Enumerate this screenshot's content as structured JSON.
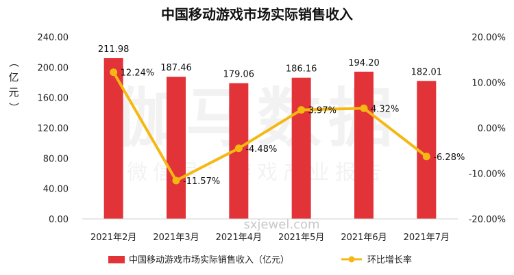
{
  "chart_data": {
    "type": "bar+line",
    "title": "中国移动游戏市场实际销售收入",
    "ylabel": "（亿元）",
    "categories": [
      "2021年2月",
      "2021年3月",
      "2021年4月",
      "2021年5月",
      "2021年6月",
      "2021年7月"
    ],
    "series": [
      {
        "name": "中国移动游戏市场实际销售收入（亿元）",
        "type": "bar",
        "axis": "left",
        "color": "#e23339",
        "values": [
          211.98,
          187.46,
          179.06,
          186.16,
          194.2,
          182.01
        ],
        "labels": [
          "211.98",
          "187.46",
          "179.06",
          "186.16",
          "194.20",
          "182.01"
        ]
      },
      {
        "name": "环比增长率",
        "type": "line",
        "axis": "right",
        "color": "#f5b813",
        "values": [
          12.24,
          -11.57,
          -4.48,
          3.97,
          4.32,
          -6.28
        ],
        "labels": [
          "12.24%",
          "-11.57%",
          "-4.48%",
          "3.97%",
          "4.32%",
          "-6.28%"
        ]
      }
    ],
    "ylim": [
      0,
      240
    ],
    "yticks": [
      "0.00",
      "40.00",
      "80.00",
      "120.00",
      "160.00",
      "200.00",
      "240.00"
    ],
    "y2lim": [
      -20,
      20
    ],
    "y2ticks": [
      "-20.00%",
      "-10.00%",
      "0.00%",
      "10.00%",
      "20.00%"
    ],
    "grid": false,
    "legend": "bottom"
  },
  "watermark": {
    "brand": "伽马数据",
    "subtitle": "微信号：游戏产业报告",
    "url": "sxjewel.com"
  }
}
